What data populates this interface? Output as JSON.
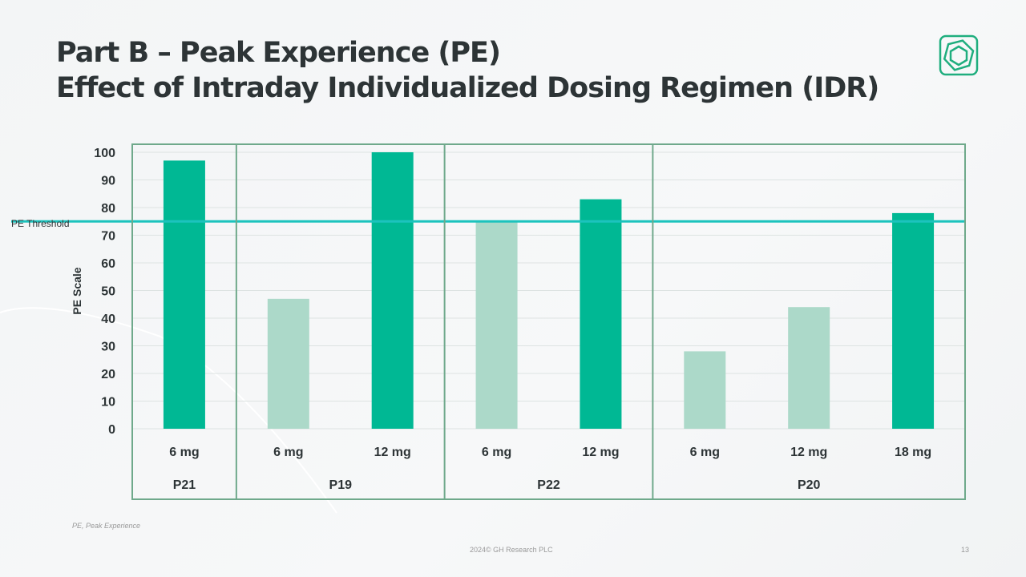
{
  "title": {
    "line1": "Part B – Peak Experience (PE)",
    "line2": "Effect of Intraday Individualized Dosing Regimen (IDR)"
  },
  "footer": {
    "note": "PE, Peak Experience",
    "copyright": "2024© GH Research PLC",
    "page": "13"
  },
  "chart_data": {
    "type": "bar",
    "ylabel": "PE Scale",
    "ylim": [
      0,
      100
    ],
    "yticks": [
      0,
      10,
      20,
      30,
      40,
      50,
      60,
      70,
      80,
      90,
      100
    ],
    "grid": true,
    "categories": [
      "6 mg",
      "6 mg",
      "12 mg",
      "6 mg",
      "12 mg",
      "6 mg",
      "12 mg",
      "18 mg"
    ],
    "groups": [
      {
        "label": "P21",
        "span": 1
      },
      {
        "label": "P19",
        "span": 2
      },
      {
        "label": "P22",
        "span": 2
      },
      {
        "label": "P20",
        "span": 3
      }
    ],
    "values": [
      97,
      47,
      100,
      75,
      83,
      28,
      44,
      78
    ],
    "above_threshold": [
      true,
      false,
      true,
      false,
      true,
      false,
      false,
      true
    ],
    "threshold": {
      "label": "PE Threshold",
      "value": 75
    },
    "colors": {
      "above": "#00b894",
      "below": "#acd9c9",
      "threshold": "#1cc3bd",
      "frame": "#6fa98b"
    }
  }
}
